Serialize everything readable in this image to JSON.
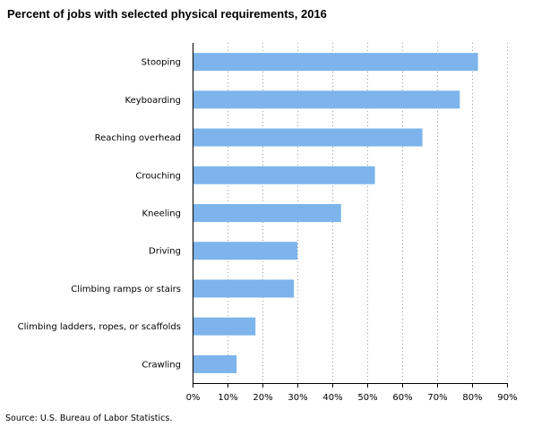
{
  "chart_data": {
    "type": "bar",
    "orientation": "horizontal",
    "title": "Percent of jobs with selected physical requirements, 2016",
    "categories": [
      "Stooping",
      "Keyboarding",
      "Reaching overhead",
      "Crouching",
      "Kneeling",
      "Driving",
      "Climbing ramps or stairs",
      "Climbing ladders, ropes, or scaffolds",
      "Crawling"
    ],
    "values": [
      81.7,
      76.5,
      65.8,
      52.2,
      42.5,
      30.0,
      29.0,
      18.0,
      12.6
    ],
    "xlim": [
      0,
      90
    ],
    "xticks": [
      0,
      10,
      20,
      30,
      40,
      50,
      60,
      70,
      80,
      90
    ],
    "tick_format": "%",
    "grid": "vertical-dotted",
    "bar_color": "#7cb4eb",
    "source": "Source: U.S. Bureau of Labor Statistics."
  }
}
